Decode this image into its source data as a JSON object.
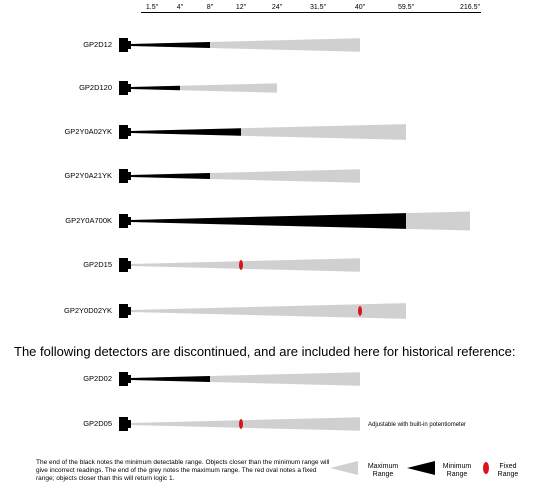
{
  "scale": [
    "1.5\"",
    "4\"",
    "8\"",
    "12\"",
    "24\"",
    "31.5\"",
    "40\"",
    "59.5\"",
    "216.5\""
  ],
  "sensors": [
    {
      "label": "GP2D12",
      "min": 2,
      "max": 6,
      "fixed": null
    },
    {
      "label": "GP2D120",
      "min": 1,
      "max": 4,
      "fixed": null
    },
    {
      "label": "GP2Y0A02YK",
      "min": 3,
      "max": 7,
      "fixed": null
    },
    {
      "label": "GP2Y0A21YK",
      "min": 2,
      "max": 6,
      "fixed": null
    },
    {
      "label": "GP2Y0A700K",
      "min": 7,
      "max": 8,
      "fixed": null
    },
    {
      "label": "GP2D15",
      "min": null,
      "max": 6,
      "fixed": 3
    },
    {
      "label": "GP2Y0D02YK",
      "min": null,
      "max": 7,
      "fixed": 6
    }
  ],
  "heading": "The following detectors are discontinued, and are included here for historical reference:",
  "discontinued": [
    {
      "label": "GP2D02",
      "min": 2,
      "max": 6,
      "fixed": null
    },
    {
      "label": "GP2D05",
      "min": null,
      "max": 6,
      "fixed": 3
    }
  ],
  "pot_note": "Adjustable with built-in potentiometer",
  "note": "The end of the black notes the minimum detectable range. Objects closer than the minimum range will give incorrect readings. The end of the grey notes the maximum range.  The red oval notes a fixed range; objects closer than this will return logic 1.",
  "legend": {
    "max": [
      "Maximum",
      "Range"
    ],
    "min": [
      "Minimum",
      "Range"
    ],
    "fixed": [
      "Fixed",
      "Range"
    ]
  },
  "colors": {
    "max": "#d0d0d0",
    "min": "#000000",
    "fixed": "#d8141c",
    "emitter": "#000000"
  }
}
